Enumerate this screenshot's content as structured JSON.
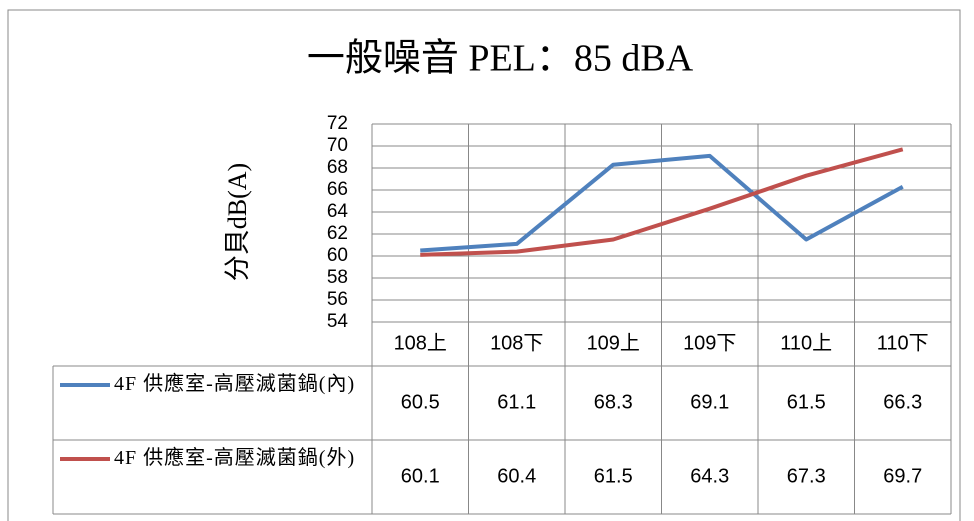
{
  "chart_data": {
    "type": "line",
    "title": "一般噪音 PEL：85 dBA",
    "y_label": "分貝dB(A)",
    "categories": [
      "108上",
      "108下",
      "109上",
      "109下",
      "110上",
      "110下"
    ],
    "series": [
      {
        "name": "4F 供應室-高壓滅菌鍋(內)",
        "color": "#4f81bd",
        "values": [
          60.5,
          61.1,
          68.3,
          69.1,
          61.5,
          66.3
        ]
      },
      {
        "name": "4F 供應室-高壓滅菌鍋(外)",
        "color": "#c0504d",
        "values": [
          60.1,
          60.4,
          61.5,
          64.3,
          67.3,
          69.7
        ]
      }
    ],
    "ylim": [
      54,
      72
    ],
    "yticks": [
      54,
      56,
      58,
      60,
      62,
      64,
      66,
      68,
      70,
      72
    ],
    "grid": true
  }
}
